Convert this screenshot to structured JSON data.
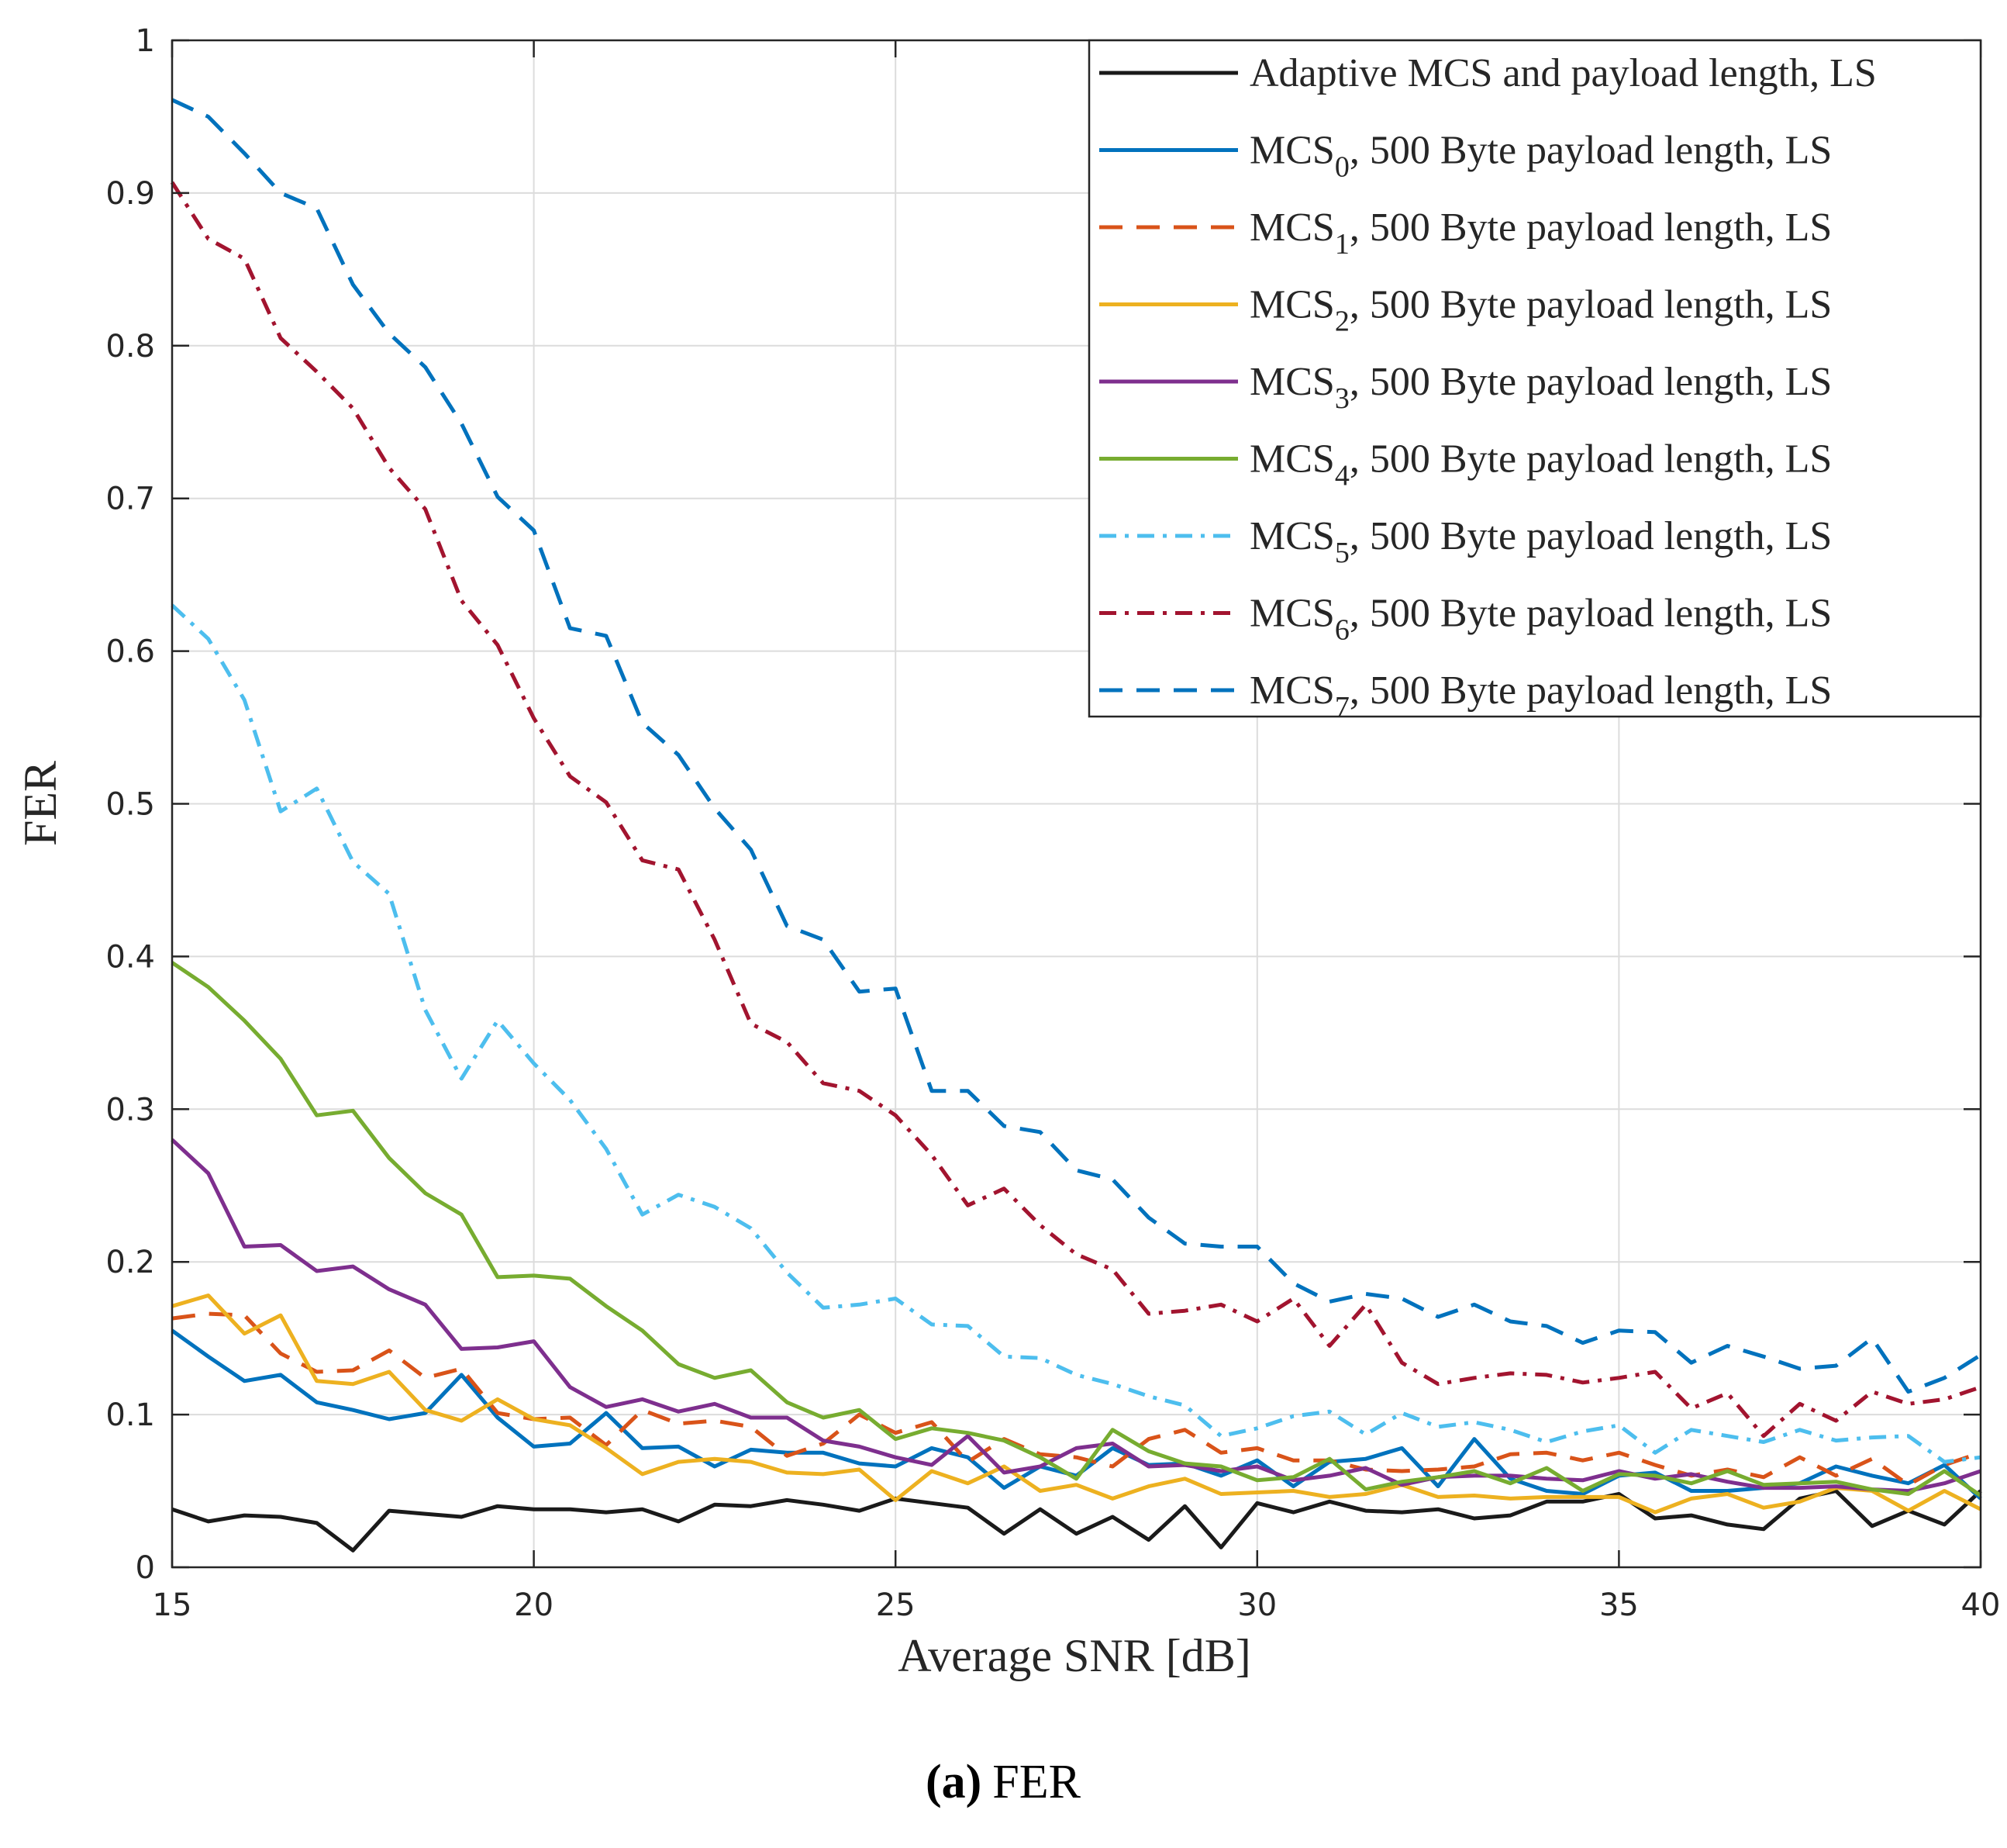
{
  "chart_data": {
    "type": "line",
    "title": "",
    "xlabel": "Average SNR [dB]",
    "ylabel": "FER",
    "xlim": [
      15,
      40
    ],
    "ylim": [
      0,
      1
    ],
    "grid": true,
    "legend_position": "top-right",
    "x_ticks": [
      15,
      20,
      25,
      30,
      35,
      40
    ],
    "x_tick_labels": [
      "15",
      "20",
      "25",
      "30",
      "35",
      "40"
    ],
    "y_ticks": [
      0,
      0.1,
      0.2,
      0.3,
      0.4,
      0.5,
      0.6,
      0.7,
      0.8,
      0.9,
      1
    ],
    "y_tick_labels": [
      "0",
      "0.1",
      "0.2",
      "0.3",
      "0.4",
      "0.5",
      "0.6",
      "0.7",
      "0.8",
      "0.9",
      "1"
    ],
    "x": [
      15,
      15.5,
      16,
      16.5,
      17,
      17.5,
      18,
      18.5,
      19,
      19.5,
      20,
      20.5,
      21,
      21.5,
      22,
      22.5,
      23,
      23.5,
      24,
      24.5,
      25,
      25.5,
      26,
      26.5,
      27,
      27.5,
      28,
      28.5,
      29,
      29.5,
      30,
      30.5,
      31,
      31.5,
      32,
      32.5,
      33,
      33.5,
      34,
      34.5,
      35,
      35.5,
      36,
      36.5,
      37,
      37.5,
      38,
      38.5,
      39,
      39.5,
      40
    ],
    "series": [
      {
        "name": "Adaptive MCS and payload length, LS",
        "label_main": "Adaptive MCS and payload length, LS",
        "label_sub": "",
        "label_rest": "",
        "color": "#1a1a1a",
        "dash": "solid",
        "values": [
          0.038,
          0.03,
          0.034,
          0.033,
          0.029,
          0.011,
          0.037,
          0.035,
          0.033,
          0.04,
          0.038,
          0.038,
          0.036,
          0.038,
          0.03,
          0.041,
          0.04,
          0.044,
          0.041,
          0.037,
          0.045,
          0.042,
          0.039,
          0.022,
          0.038,
          0.022,
          0.033,
          0.018,
          0.04,
          0.013,
          0.042,
          0.036,
          0.043,
          0.037,
          0.036,
          0.038,
          0.032,
          0.034,
          0.043,
          0.043,
          0.048,
          0.032,
          0.034,
          0.028,
          0.025,
          0.045,
          0.05,
          0.027,
          0.037,
          0.028,
          0.05
        ]
      },
      {
        "name": "MCS0, 500 Byte payload length, LS",
        "label_main": "MCS",
        "label_sub": "0",
        "label_rest": ", 500 Byte payload length, LS",
        "color": "#0072BD",
        "dash": "solid",
        "values": [
          0.155,
          0.138,
          0.122,
          0.126,
          0.108,
          0.103,
          0.097,
          0.101,
          0.126,
          0.098,
          0.079,
          0.081,
          0.101,
          0.078,
          0.079,
          0.066,
          0.077,
          0.075,
          0.075,
          0.068,
          0.066,
          0.078,
          0.072,
          0.052,
          0.066,
          0.06,
          0.078,
          0.067,
          0.068,
          0.06,
          0.07,
          0.053,
          0.069,
          0.071,
          0.078,
          0.053,
          0.084,
          0.058,
          0.05,
          0.048,
          0.06,
          0.062,
          0.05,
          0.05,
          0.052,
          0.055,
          0.066,
          0.06,
          0.055,
          0.067,
          0.045
        ]
      },
      {
        "name": "MCS1, 500 Byte payload length, LS",
        "label_main": "MCS",
        "label_sub": "1",
        "label_rest": ", 500 Byte payload length, LS",
        "color": "#D95319",
        "dash": "dash",
        "values": [
          0.163,
          0.166,
          0.165,
          0.14,
          0.128,
          0.129,
          0.142,
          0.124,
          0.13,
          0.101,
          0.097,
          0.098,
          0.08,
          0.103,
          0.094,
          0.096,
          0.092,
          0.073,
          0.081,
          0.1,
          0.088,
          0.095,
          0.069,
          0.084,
          0.074,
          0.072,
          0.066,
          0.084,
          0.09,
          0.075,
          0.078,
          0.07,
          0.07,
          0.064,
          0.063,
          0.064,
          0.066,
          0.074,
          0.075,
          0.07,
          0.075,
          0.067,
          0.06,
          0.064,
          0.059,
          0.072,
          0.06,
          0.071,
          0.054,
          0.067,
          0.075
        ]
      },
      {
        "name": "MCS2, 500 Byte payload length, LS",
        "label_main": "MCS",
        "label_sub": "2",
        "label_rest": ", 500 Byte payload length, LS",
        "color": "#EDB120",
        "dash": "solid",
        "values": [
          0.171,
          0.178,
          0.153,
          0.165,
          0.122,
          0.12,
          0.128,
          0.103,
          0.096,
          0.11,
          0.097,
          0.093,
          0.078,
          0.061,
          0.069,
          0.071,
          0.069,
          0.062,
          0.061,
          0.064,
          0.044,
          0.063,
          0.055,
          0.066,
          0.05,
          0.054,
          0.045,
          0.053,
          0.058,
          0.048,
          0.049,
          0.05,
          0.046,
          0.048,
          0.054,
          0.046,
          0.047,
          0.045,
          0.046,
          0.046,
          0.046,
          0.036,
          0.045,
          0.048,
          0.039,
          0.043,
          0.052,
          0.05,
          0.037,
          0.05,
          0.038
        ]
      },
      {
        "name": "MCS3, 500 Byte payload length, LS",
        "label_main": "MCS",
        "label_sub": "3",
        "label_rest": ", 500 Byte payload length, LS",
        "color": "#7E2F8E",
        "dash": "solid",
        "values": [
          0.28,
          0.258,
          0.21,
          0.211,
          0.194,
          0.197,
          0.182,
          0.172,
          0.143,
          0.144,
          0.148,
          0.118,
          0.105,
          0.11,
          0.102,
          0.107,
          0.098,
          0.098,
          0.083,
          0.079,
          0.072,
          0.067,
          0.086,
          0.062,
          0.066,
          0.078,
          0.081,
          0.066,
          0.067,
          0.063,
          0.066,
          0.057,
          0.06,
          0.065,
          0.054,
          0.059,
          0.06,
          0.06,
          0.058,
          0.057,
          0.063,
          0.058,
          0.061,
          0.056,
          0.052,
          0.052,
          0.053,
          0.051,
          0.05,
          0.055,
          0.063
        ]
      },
      {
        "name": "MCS4, 500 Byte payload length, LS",
        "label_main": "MCS",
        "label_sub": "4",
        "label_rest": ", 500 Byte payload length, LS",
        "color": "#77AC30",
        "dash": "solid",
        "values": [
          0.396,
          0.38,
          0.358,
          0.333,
          0.296,
          0.299,
          0.268,
          0.245,
          0.231,
          0.19,
          0.191,
          0.189,
          0.171,
          0.155,
          0.133,
          0.124,
          0.129,
          0.108,
          0.098,
          0.103,
          0.084,
          0.091,
          0.088,
          0.083,
          0.072,
          0.058,
          0.09,
          0.076,
          0.068,
          0.066,
          0.057,
          0.059,
          0.071,
          0.051,
          0.056,
          0.059,
          0.063,
          0.055,
          0.065,
          0.05,
          0.061,
          0.06,
          0.055,
          0.063,
          0.054,
          0.055,
          0.056,
          0.051,
          0.048,
          0.063,
          0.047
        ]
      },
      {
        "name": "MCS5, 500 Byte payload length, LS",
        "label_main": "MCS",
        "label_sub": "5",
        "label_rest": ", 500 Byte payload length, LS",
        "color": "#4DBEEE",
        "dash": "dashdot",
        "values": [
          0.63,
          0.608,
          0.568,
          0.495,
          0.51,
          0.462,
          0.441,
          0.365,
          0.32,
          0.358,
          0.33,
          0.306,
          0.274,
          0.231,
          0.244,
          0.236,
          0.222,
          0.193,
          0.17,
          0.172,
          0.176,
          0.159,
          0.158,
          0.138,
          0.137,
          0.126,
          0.12,
          0.112,
          0.106,
          0.086,
          0.091,
          0.099,
          0.102,
          0.087,
          0.101,
          0.092,
          0.095,
          0.09,
          0.082,
          0.089,
          0.093,
          0.075,
          0.09,
          0.086,
          0.082,
          0.09,
          0.083,
          0.085,
          0.086,
          0.069,
          0.072
        ]
      },
      {
        "name": "MCS6, 500 Byte payload length, LS",
        "label_main": "MCS",
        "label_sub": "6",
        "label_rest": ", 500 Byte payload length, LS",
        "color": "#A2142F",
        "dash": "dashdot",
        "values": [
          0.907,
          0.87,
          0.857,
          0.805,
          0.783,
          0.759,
          0.72,
          0.693,
          0.633,
          0.604,
          0.556,
          0.518,
          0.501,
          0.463,
          0.457,
          0.411,
          0.356,
          0.344,
          0.317,
          0.312,
          0.296,
          0.27,
          0.237,
          0.248,
          0.224,
          0.205,
          0.195,
          0.166,
          0.168,
          0.172,
          0.161,
          0.176,
          0.145,
          0.172,
          0.134,
          0.12,
          0.124,
          0.127,
          0.126,
          0.121,
          0.124,
          0.128,
          0.104,
          0.114,
          0.086,
          0.107,
          0.096,
          0.115,
          0.107,
          0.11,
          0.118
        ]
      },
      {
        "name": "MCS7, 500 Byte payload length, LS",
        "label_main": "MCS",
        "label_sub": "7",
        "label_rest": ", 500 Byte payload length, LS",
        "color": "#0072BD",
        "dash": "dash",
        "values": [
          0.961,
          0.95,
          0.926,
          0.9,
          0.89,
          0.84,
          0.808,
          0.786,
          0.749,
          0.701,
          0.679,
          0.615,
          0.61,
          0.553,
          0.532,
          0.497,
          0.47,
          0.42,
          0.411,
          0.377,
          0.379,
          0.312,
          0.312,
          0.289,
          0.285,
          0.26,
          0.254,
          0.229,
          0.212,
          0.21,
          0.21,
          0.186,
          0.174,
          0.179,
          0.176,
          0.164,
          0.172,
          0.161,
          0.158,
          0.147,
          0.155,
          0.154,
          0.134,
          0.145,
          0.138,
          0.13,
          0.132,
          0.15,
          0.115,
          0.124,
          0.139
        ]
      }
    ]
  },
  "caption": {
    "label": "(a)",
    "text": "FER"
  }
}
